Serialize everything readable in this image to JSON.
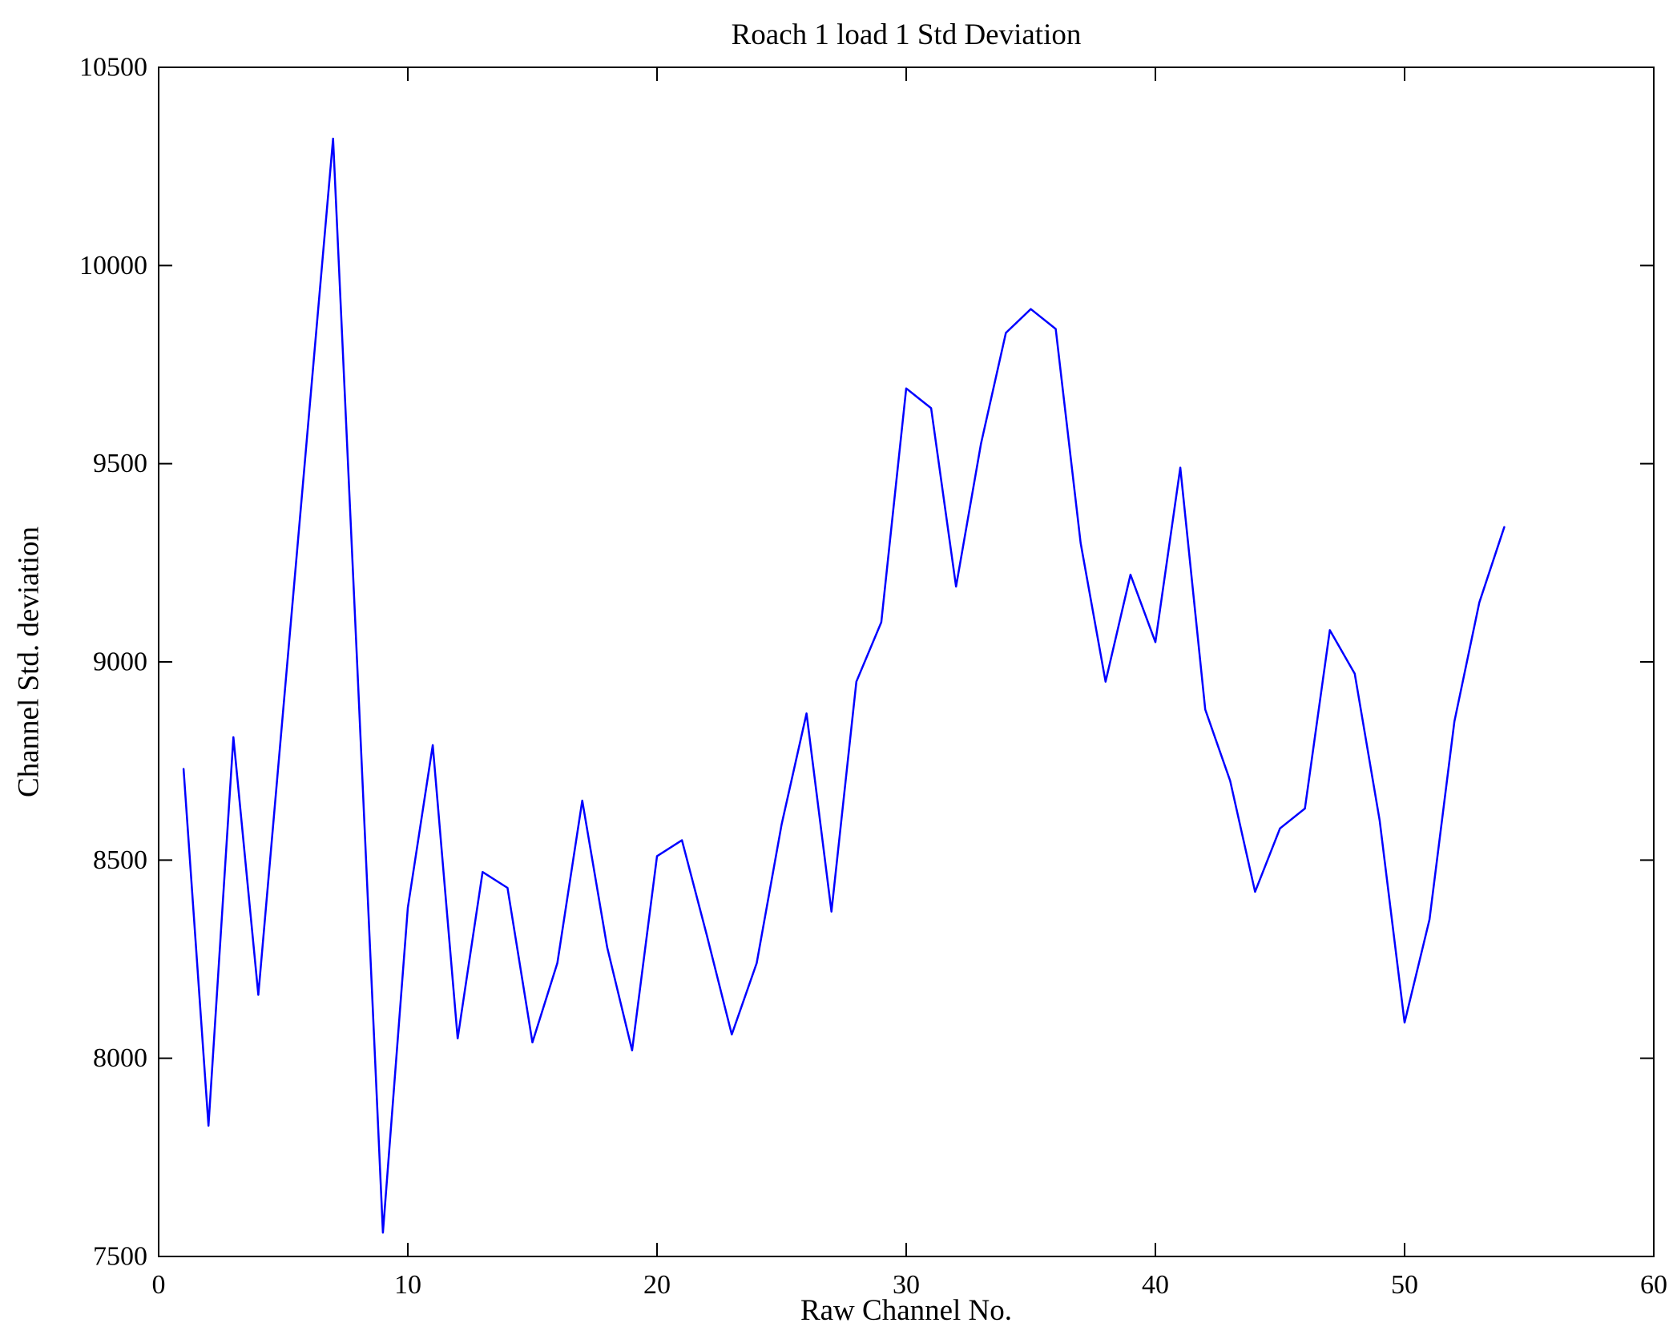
{
  "chart_data": {
    "type": "line",
    "title": "Roach 1 load 1 Std Deviation",
    "xlabel": "Raw Channel No.",
    "ylabel": "Channel Std. deviation",
    "xlim": [
      0,
      60
    ],
    "ylim": [
      7500,
      10500
    ],
    "xticks": [
      0,
      10,
      20,
      30,
      40,
      50,
      60
    ],
    "yticks": [
      7500,
      8000,
      8500,
      9000,
      9500,
      10000,
      10500
    ],
    "grid": false,
    "legend": "none",
    "line_color": "#0000ff",
    "axes_color": "#000000",
    "x": [
      1,
      2,
      3,
      4,
      5,
      6,
      7,
      8,
      9,
      10,
      11,
      12,
      13,
      14,
      15,
      16,
      17,
      18,
      19,
      20,
      21,
      22,
      23,
      24,
      25,
      26,
      27,
      28,
      29,
      30,
      31,
      32,
      33,
      34,
      35,
      36,
      37,
      38,
      39,
      40,
      41,
      42,
      43,
      44,
      45,
      46,
      47,
      48,
      49,
      50,
      51,
      52,
      53,
      54
    ],
    "y": [
      8730,
      7830,
      8810,
      8160,
      8880,
      9600,
      10320,
      8950,
      7560,
      8380,
      8790,
      8050,
      8470,
      8430,
      8040,
      8240,
      8650,
      8280,
      8020,
      8510,
      8550,
      8310,
      8060,
      8240,
      8590,
      8870,
      8370,
      8950,
      9100,
      9690,
      9640,
      9190,
      9550,
      9830,
      9890,
      9840,
      9300,
      8950,
      9220,
      9050,
      9490,
      8880,
      8700,
      8420,
      8580,
      8630,
      9080,
      8970,
      8600,
      8090,
      8350,
      8850,
      9150,
      9340
    ]
  }
}
